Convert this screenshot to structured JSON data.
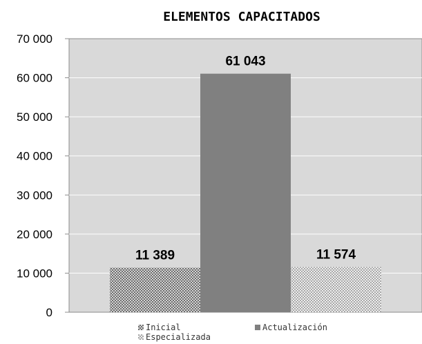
{
  "chart_data": {
    "type": "bar",
    "title": "ELEMENTOS CAPACITADOS",
    "xlabel": "",
    "ylabel": "",
    "ylim": [
      0,
      70000
    ],
    "yticks": [
      0,
      10000,
      20000,
      30000,
      40000,
      50000,
      60000,
      70000
    ],
    "ytick_labels": [
      "0",
      "10 000",
      "20 000",
      "30 000",
      "40 000",
      "50 000",
      "60 000",
      "70 000"
    ],
    "grid": true,
    "legend_position": "bottom",
    "plot_background": "#d9d9d9",
    "series": [
      {
        "name": "Inicial",
        "values": [
          11389
        ],
        "label": "11 389",
        "pattern": "dense-check",
        "color": "#7f7f7f"
      },
      {
        "name": "Actualización",
        "values": [
          61043
        ],
        "label": "61 043",
        "pattern": "solid",
        "color": "#808080"
      },
      {
        "name": "Especializada",
        "values": [
          11574
        ],
        "label": "11 574",
        "pattern": "light-check",
        "color": "#b3b3b3"
      }
    ]
  }
}
